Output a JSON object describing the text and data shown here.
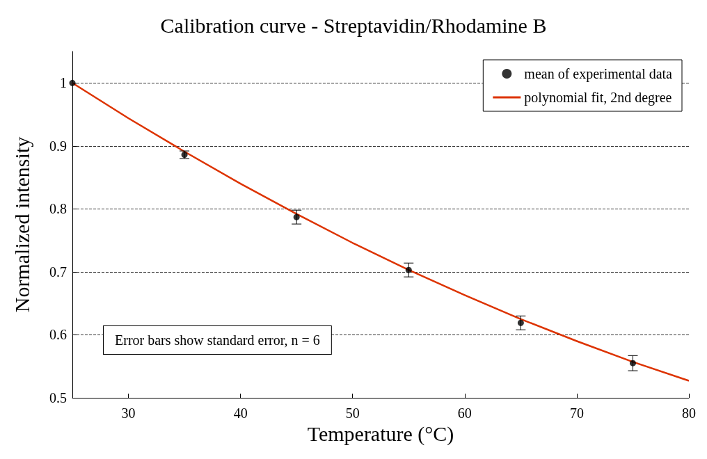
{
  "chart_data": {
    "type": "scatter",
    "title": "Calibration curve - Streptavidin/Rhodamine B",
    "xlabel": "Temperature (°C)",
    "ylabel": "Normalized intensity",
    "annotations": [
      "Error bars show standard error, n = 6"
    ],
    "series": [
      {
        "name": "mean of experimental data",
        "color": "#000000",
        "x": [
          25,
          35,
          45,
          55,
          65,
          75
        ],
        "values": [
          1.0,
          0.886,
          0.787,
          0.703,
          0.619,
          0.555
        ],
        "errors": [
          null,
          0.006,
          0.011,
          0.011,
          0.011,
          0.012
        ],
        "marker": "circle"
      },
      {
        "name": "polynomial fit, 2nd degree",
        "type": "line",
        "color": "#dd3300",
        "x": [
          25,
          30,
          35,
          40,
          45,
          50,
          55,
          60,
          65,
          70,
          75,
          80
        ],
        "values": [
          1.0,
          0.944,
          0.891,
          0.84,
          0.792,
          0.746,
          0.703,
          0.663,
          0.625,
          0.59,
          0.557,
          0.527
        ],
        "marker": "none",
        "line_style": "solid"
      }
    ],
    "xlim": [
      25,
      80
    ],
    "xticks": [
      30,
      40,
      50,
      60,
      70,
      80
    ],
    "ylim": [
      0.5,
      1.05
    ],
    "yticks": [
      0.5,
      0.6,
      0.7,
      0.8,
      0.9,
      1
    ],
    "grid": "y",
    "legend": "top right"
  }
}
